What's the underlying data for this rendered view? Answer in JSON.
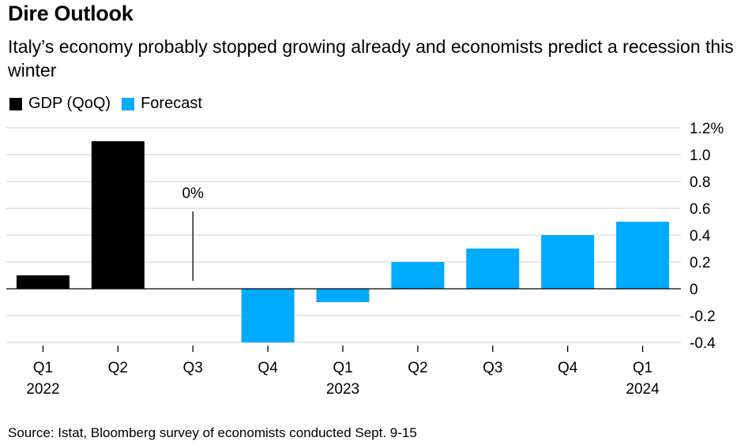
{
  "chart_data": {
    "type": "bar",
    "title": "Dire Outlook",
    "subtitle": "Italy’s economy probably stopped growing already and economists predict a recession this winter",
    "categories": [
      "Q1",
      "Q2",
      "Q3",
      "Q4",
      "Q1",
      "Q2",
      "Q3",
      "Q4",
      "Q1"
    ],
    "year_labels": [
      "2022",
      "",
      "",
      "",
      "2023",
      "",
      "",
      "",
      "2024"
    ],
    "series": [
      {
        "name": "GDP (QoQ)",
        "color": "#000000",
        "values": [
          0.1,
          1.1,
          0.0,
          null,
          null,
          null,
          null,
          null,
          null
        ]
      },
      {
        "name": "Forecast",
        "color": "#00aaff",
        "values": [
          null,
          null,
          null,
          -0.4,
          -0.1,
          0.2,
          0.3,
          0.4,
          0.5
        ]
      }
    ],
    "ylim": [
      -0.4,
      1.2
    ],
    "yticks": [
      -0.4,
      -0.2,
      0,
      0.2,
      0.4,
      0.6,
      0.8,
      1.0,
      1.2
    ],
    "ytick_labels": [
      "-0.4",
      "-0.2",
      "0",
      "0.2",
      "0.4",
      "0.6",
      "0.8",
      "1.0",
      "1.2%"
    ],
    "y_axis_position": "right",
    "grid": true,
    "legend_position": "top-left",
    "annotations": [
      {
        "category_index": 2,
        "value": 0.0,
        "text": "0%"
      }
    ],
    "source": "Source: Istat, Bloomberg survey of economists conducted Sept. 9-15"
  }
}
